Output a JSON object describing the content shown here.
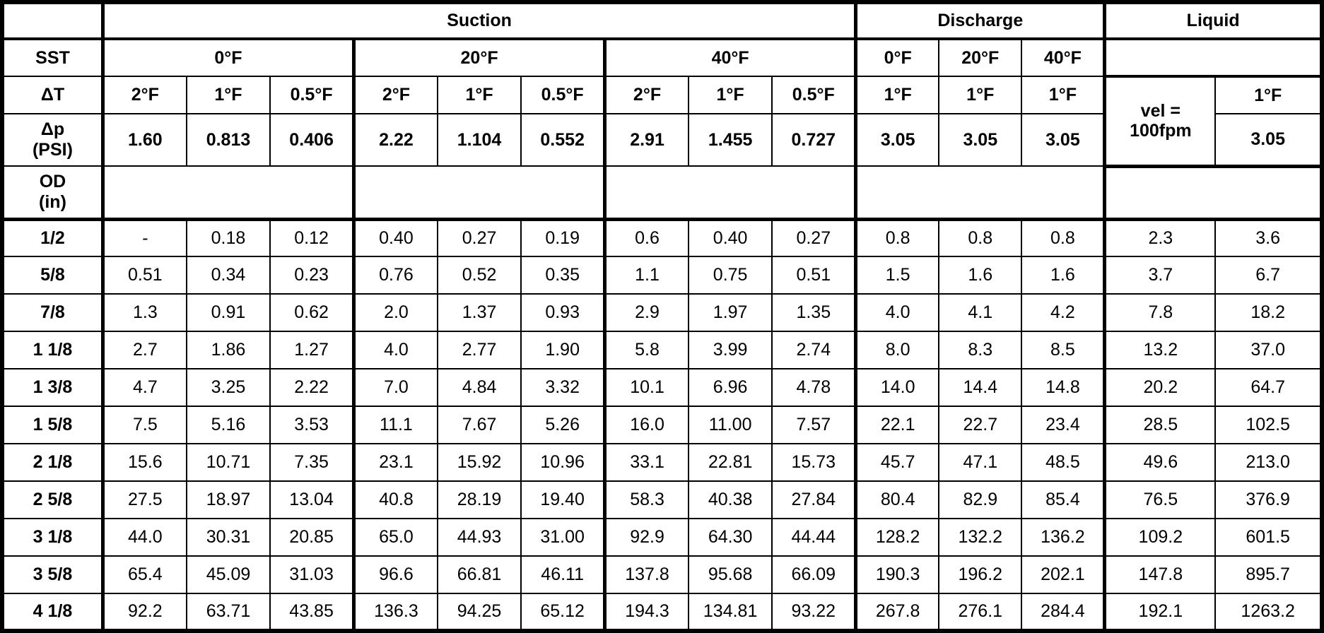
{
  "chart_data": {
    "type": "table",
    "sections": {
      "suction": "Suction",
      "discharge": "Discharge",
      "liquid": "Liquid"
    },
    "row_labels": {
      "sst": "SST",
      "dt": "ΔT",
      "dp": "Δp\n(PSI)",
      "od": "OD\n(in)"
    },
    "sst": {
      "suction": [
        "0°F",
        "20°F",
        "40°F"
      ],
      "discharge": [
        "0°F",
        "20°F",
        "40°F"
      ]
    },
    "dt": {
      "suction": [
        "2°F",
        "1°F",
        "0.5°F",
        "2°F",
        "1°F",
        "0.5°F",
        "2°F",
        "1°F",
        "0.5°F"
      ],
      "discharge": [
        "1°F",
        "1°F",
        "1°F"
      ],
      "liquid_note": "vel =\n100fpm",
      "liquid": "1°F"
    },
    "dp_psi": {
      "suction": [
        "1.60",
        "0.813",
        "0.406",
        "2.22",
        "1.104",
        "0.552",
        "2.91",
        "1.455",
        "0.727"
      ],
      "discharge": [
        "3.05",
        "3.05",
        "3.05"
      ],
      "liquid": "3.05"
    },
    "columns": [
      "Suction 0°F ΔT 2°F",
      "Suction 0°F ΔT 1°F",
      "Suction 0°F ΔT 0.5°F",
      "Suction 20°F ΔT 2°F",
      "Suction 20°F ΔT 1°F",
      "Suction 20°F ΔT 0.5°F",
      "Suction 40°F ΔT 2°F",
      "Suction 40°F ΔT 1°F",
      "Suction 40°F ΔT 0.5°F",
      "Discharge 0°F ΔT 1°F",
      "Discharge 20°F ΔT 1°F",
      "Discharge 40°F ΔT 1°F",
      "Liquid vel = 100fpm",
      "Liquid ΔT 1°F"
    ],
    "rows": [
      {
        "od": "1/2",
        "values": [
          "-",
          "0.18",
          "0.12",
          "0.40",
          "0.27",
          "0.19",
          "0.6",
          "0.40",
          "0.27",
          "0.8",
          "0.8",
          "0.8",
          "2.3",
          "3.6"
        ]
      },
      {
        "od": "5/8",
        "values": [
          "0.51",
          "0.34",
          "0.23",
          "0.76",
          "0.52",
          "0.35",
          "1.1",
          "0.75",
          "0.51",
          "1.5",
          "1.6",
          "1.6",
          "3.7",
          "6.7"
        ]
      },
      {
        "od": "7/8",
        "values": [
          "1.3",
          "0.91",
          "0.62",
          "2.0",
          "1.37",
          "0.93",
          "2.9",
          "1.97",
          "1.35",
          "4.0",
          "4.1",
          "4.2",
          "7.8",
          "18.2"
        ]
      },
      {
        "od": "1 1/8",
        "values": [
          "2.7",
          "1.86",
          "1.27",
          "4.0",
          "2.77",
          "1.90",
          "5.8",
          "3.99",
          "2.74",
          "8.0",
          "8.3",
          "8.5",
          "13.2",
          "37.0"
        ]
      },
      {
        "od": "1 3/8",
        "values": [
          "4.7",
          "3.25",
          "2.22",
          "7.0",
          "4.84",
          "3.32",
          "10.1",
          "6.96",
          "4.78",
          "14.0",
          "14.4",
          "14.8",
          "20.2",
          "64.7"
        ]
      },
      {
        "od": "1 5/8",
        "values": [
          "7.5",
          "5.16",
          "3.53",
          "11.1",
          "7.67",
          "5.26",
          "16.0",
          "11.00",
          "7.57",
          "22.1",
          "22.7",
          "23.4",
          "28.5",
          "102.5"
        ]
      },
      {
        "od": "2 1/8",
        "values": [
          "15.6",
          "10.71",
          "7.35",
          "23.1",
          "15.92",
          "10.96",
          "33.1",
          "22.81",
          "15.73",
          "45.7",
          "47.1",
          "48.5",
          "49.6",
          "213.0"
        ]
      },
      {
        "od": "2 5/8",
        "values": [
          "27.5",
          "18.97",
          "13.04",
          "40.8",
          "28.19",
          "19.40",
          "58.3",
          "40.38",
          "27.84",
          "80.4",
          "82.9",
          "85.4",
          "76.5",
          "376.9"
        ]
      },
      {
        "od": "3 1/8",
        "values": [
          "44.0",
          "30.31",
          "20.85",
          "65.0",
          "44.93",
          "31.00",
          "92.9",
          "64.30",
          "44.44",
          "128.2",
          "132.2",
          "136.2",
          "109.2",
          "601.5"
        ]
      },
      {
        "od": "3 5/8",
        "values": [
          "65.4",
          "45.09",
          "31.03",
          "96.6",
          "66.81",
          "46.11",
          "137.8",
          "95.68",
          "66.09",
          "190.3",
          "196.2",
          "202.1",
          "147.8",
          "895.7"
        ]
      },
      {
        "od": "4 1/8",
        "values": [
          "92.2",
          "63.71",
          "43.85",
          "136.3",
          "94.25",
          "65.12",
          "194.3",
          "134.81",
          "93.22",
          "267.8",
          "276.1",
          "284.4",
          "192.1",
          "1263.2"
        ]
      }
    ]
  }
}
